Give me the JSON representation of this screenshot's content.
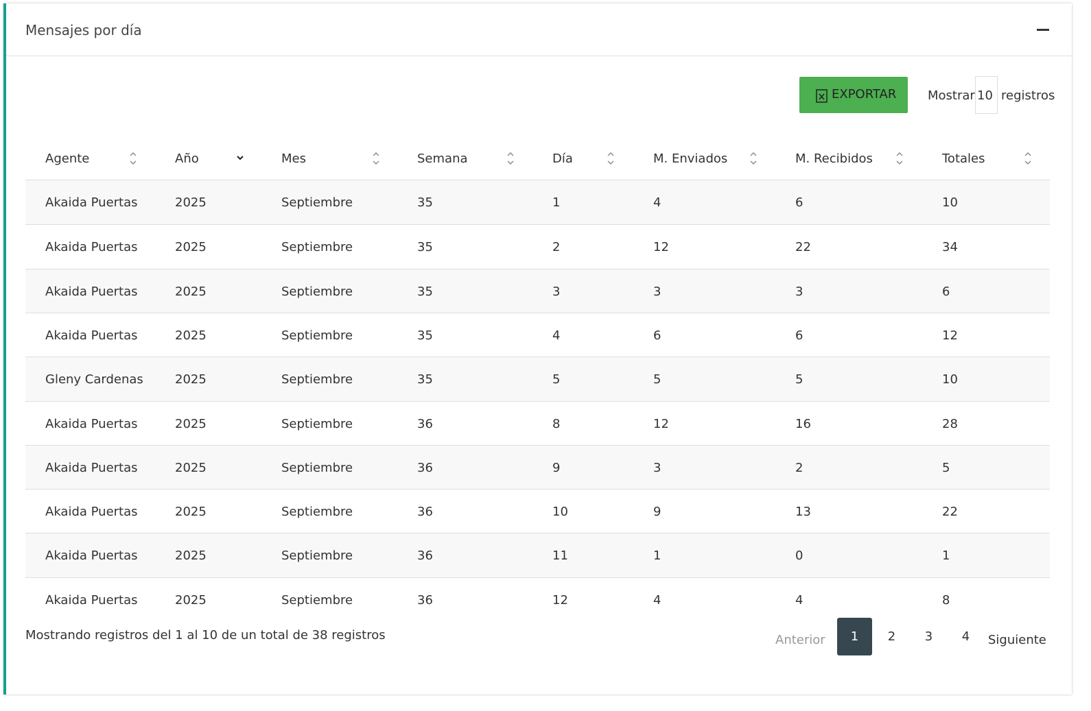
{
  "header": {
    "title": "Mensajes por día"
  },
  "toolbar": {
    "export": "EXPORTAR",
    "show_prefix": "Mostrar",
    "show_value": "10",
    "show_suffix": "registros"
  },
  "table": {
    "columns": [
      "Agente",
      "Año",
      "Mes",
      "Semana",
      "Día",
      "M. Enviados",
      "M. Recibidos",
      "Totales"
    ],
    "rows": [
      [
        "Akaida Puertas",
        2025,
        "Septiembre",
        35,
        1,
        4,
        6,
        10
      ],
      [
        "Akaida Puertas",
        2025,
        "Septiembre",
        35,
        2,
        12,
        22,
        34
      ],
      [
        "Akaida Puertas",
        2025,
        "Septiembre",
        35,
        3,
        3,
        3,
        6
      ],
      [
        "Akaida Puertas",
        2025,
        "Septiembre",
        35,
        4,
        6,
        6,
        12
      ],
      [
        "Gleny Cardenas",
        2025,
        "Septiembre",
        35,
        5,
        5,
        5,
        10
      ],
      [
        "Akaida Puertas",
        2025,
        "Septiembre",
        36,
        8,
        12,
        16,
        28
      ],
      [
        "Akaida Puertas",
        2025,
        "Septiembre",
        36,
        9,
        3,
        2,
        5
      ],
      [
        "Akaida Puertas",
        2025,
        "Septiembre",
        36,
        10,
        9,
        13,
        22
      ],
      [
        "Akaida Puertas",
        2025,
        "Septiembre",
        36,
        11,
        1,
        0,
        1
      ],
      [
        "Akaida Puertas",
        2025,
        "Septiembre",
        36,
        12,
        4,
        4,
        8
      ]
    ]
  },
  "footer": {
    "info": "Mostrando registros del 1 al 10 de un total de 38 registros"
  },
  "pagination": {
    "prev": "Anterior",
    "pages": [
      "1",
      "2",
      "3",
      "4"
    ],
    "next": "Siguiente"
  }
}
